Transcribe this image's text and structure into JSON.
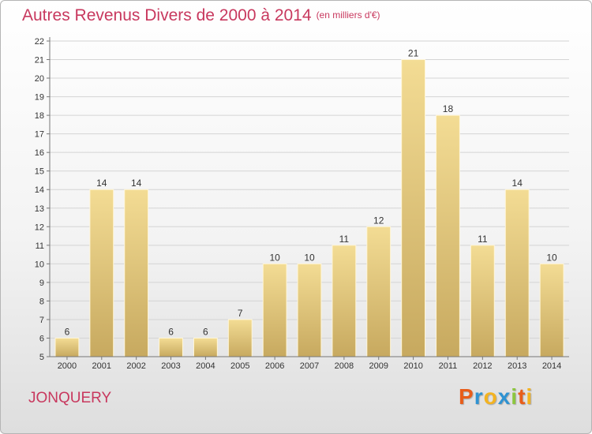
{
  "header": {
    "title": "Autres Revenus Divers de 2000 à 2014",
    "unit": "(en milliers d'€)"
  },
  "footer": {
    "commune": "JONQUERY",
    "logo_letters": [
      "P",
      "r",
      "o",
      "x",
      "i",
      "t",
      "i"
    ],
    "logo_colors": [
      "#e85d1a",
      "#2f93d2",
      "#f3b321",
      "#2f93d2",
      "#8cc63f",
      "#e85d1a",
      "#f3b321"
    ]
  },
  "colors": {
    "bar_light": "#f3dc94",
    "bar_dark": "#c7a95f",
    "title": "#c8385e",
    "grid": "#d4d4d4"
  },
  "chart_data": {
    "type": "bar",
    "title": "Autres Revenus Divers de 2000 à 2014",
    "subtitle": "(en milliers d'€)",
    "categories": [
      "2000",
      "2001",
      "2002",
      "2003",
      "2004",
      "2005",
      "2006",
      "2007",
      "2008",
      "2009",
      "2010",
      "2011",
      "2012",
      "2013",
      "2014"
    ],
    "values": [
      6,
      14,
      14,
      6,
      6,
      7,
      10,
      10,
      11,
      12,
      21,
      18,
      11,
      14,
      10
    ],
    "ylim": [
      5,
      22
    ],
    "yticks": [
      5,
      6,
      7,
      8,
      9,
      10,
      11,
      12,
      13,
      14,
      15,
      16,
      17,
      18,
      19,
      20,
      21,
      22
    ],
    "grid": true,
    "xlabel": "",
    "ylabel": ""
  }
}
